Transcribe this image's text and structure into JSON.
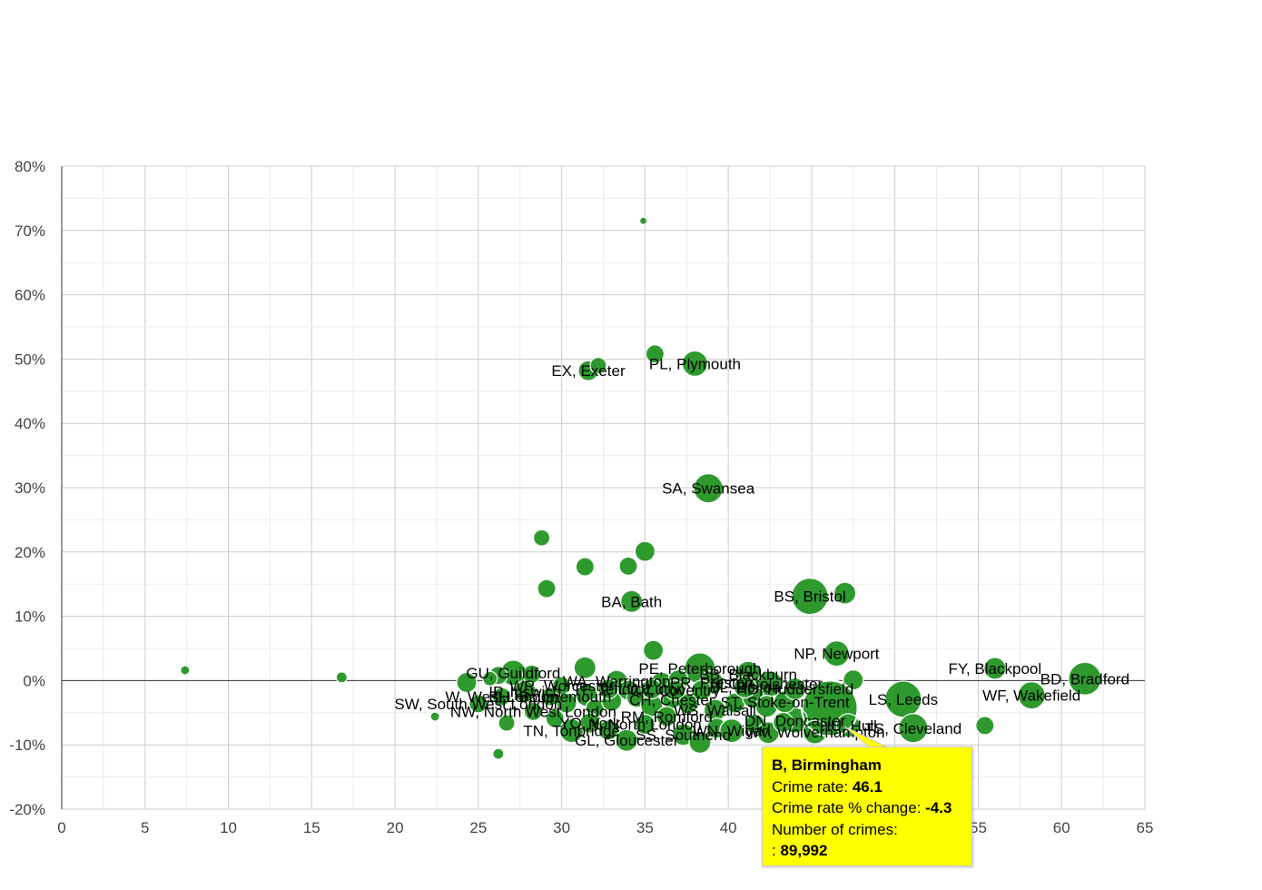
{
  "chart_data": {
    "type": "scatter",
    "title": "",
    "xlabel": "",
    "ylabel": "",
    "xlim": [
      0,
      65
    ],
    "ylim": [
      -20,
      80
    ],
    "x_ticks": [
      "0",
      "5",
      "10",
      "15",
      "20",
      "25",
      "30",
      "35",
      "40",
      "45",
      "50",
      "55",
      "60",
      "65"
    ],
    "y_ticks": [
      "-20%",
      "-10%",
      "0%",
      "10%",
      "20%",
      "30%",
      "40%",
      "50%",
      "60%",
      "70%",
      "80%"
    ],
    "bubble_color": "#2e9a2e",
    "points": [
      {
        "x": 7.4,
        "y": 1.6,
        "r": 5,
        "label": ""
      },
      {
        "x": 16.8,
        "y": 0.5,
        "r": 6,
        "label": ""
      },
      {
        "x": 22.4,
        "y": -5.6,
        "r": 5,
        "label": ""
      },
      {
        "x": 26.2,
        "y": -11.4,
        "r": 6,
        "label": ""
      },
      {
        "x": 34.9,
        "y": 71.5,
        "r": 4,
        "label": ""
      },
      {
        "x": 35.6,
        "y": 50.8,
        "r": 10,
        "label": ""
      },
      {
        "x": 38.0,
        "y": 49.3,
        "r": 14,
        "label": "PL, Plymouth"
      },
      {
        "x": 31.6,
        "y": 48.2,
        "r": 11,
        "label": "EX, Exeter"
      },
      {
        "x": 32.2,
        "y": 49.0,
        "r": 9,
        "label": ""
      },
      {
        "x": 38.8,
        "y": 29.9,
        "r": 16,
        "label": "SA, Swansea"
      },
      {
        "x": 28.8,
        "y": 22.2,
        "r": 9,
        "label": ""
      },
      {
        "x": 35.0,
        "y": 20.1,
        "r": 11,
        "label": ""
      },
      {
        "x": 31.4,
        "y": 17.7,
        "r": 10,
        "label": ""
      },
      {
        "x": 34.0,
        "y": 17.8,
        "r": 10,
        "label": ""
      },
      {
        "x": 29.1,
        "y": 14.3,
        "r": 10,
        "label": ""
      },
      {
        "x": 34.2,
        "y": 12.3,
        "r": 12,
        "label": "BA, Bath"
      },
      {
        "x": 44.9,
        "y": 13.1,
        "r": 20,
        "label": "BS, Bristol"
      },
      {
        "x": 47.0,
        "y": 13.6,
        "r": 12,
        "label": ""
      },
      {
        "x": 35.5,
        "y": 4.7,
        "r": 11,
        "label": ""
      },
      {
        "x": 46.5,
        "y": 4.2,
        "r": 14,
        "label": "NP, Newport"
      },
      {
        "x": 47.5,
        "y": 0.1,
        "r": 11,
        "label": ""
      },
      {
        "x": 56.0,
        "y": 1.9,
        "r": 12,
        "label": "FY, Blackpool"
      },
      {
        "x": 61.4,
        "y": 0.3,
        "r": 18,
        "label": "BD, Bradford"
      },
      {
        "x": 58.2,
        "y": -2.3,
        "r": 15,
        "label": "WF, Wakefield"
      },
      {
        "x": 50.5,
        "y": -2.9,
        "r": 20,
        "label": "LS, Leeds"
      },
      {
        "x": 51.1,
        "y": -7.4,
        "r": 16,
        "label": "TS, Cleveland"
      },
      {
        "x": 55.4,
        "y": -7.0,
        "r": 10,
        "label": ""
      },
      {
        "x": 46.1,
        "y": -4.3,
        "r": 30,
        "label": ""
      },
      {
        "x": 44.0,
        "y": -6.2,
        "r": 14,
        "label": "DN, Doncaster"
      },
      {
        "x": 45.2,
        "y": -8.0,
        "r": 13,
        "label": "WV, Wolverhampton"
      },
      {
        "x": 47.2,
        "y": -7.0,
        "r": 13,
        "label": "HU, Hull"
      },
      {
        "x": 38.3,
        "y": 1.9,
        "r": 17,
        "label": "PE, Peterborough"
      },
      {
        "x": 41.2,
        "y": 1.0,
        "r": 14,
        "label": "BB, Blackburn"
      },
      {
        "x": 42.5,
        "y": -0.5,
        "r": 14,
        "label": "CO, Colchester"
      },
      {
        "x": 39.0,
        "y": -0.3,
        "r": 13,
        "label": "PR, Preston"
      },
      {
        "x": 36.0,
        "y": -0.4,
        "r": 12,
        "label": ""
      },
      {
        "x": 37.0,
        "y": 0.1,
        "r": 11,
        "label": ""
      },
      {
        "x": 33.3,
        "y": -0.1,
        "r": 12,
        "label": "WA, Warrington"
      },
      {
        "x": 34.0,
        "y": -1.5,
        "r": 11,
        "label": ""
      },
      {
        "x": 31.4,
        "y": 2.0,
        "r": 12,
        "label": ""
      },
      {
        "x": 27.1,
        "y": 1.2,
        "r": 14,
        "label": "GU, Guildford"
      },
      {
        "x": 28.2,
        "y": 1.0,
        "r": 10,
        "label": ""
      },
      {
        "x": 26.2,
        "y": 0.8,
        "r": 10,
        "label": ""
      },
      {
        "x": 24.3,
        "y": -0.3,
        "r": 11,
        "label": ""
      },
      {
        "x": 25.7,
        "y": 0.3,
        "r": 8,
        "label": ""
      },
      {
        "x": 27.8,
        "y": -1.7,
        "r": 12,
        "label": "IP, Ipswich"
      },
      {
        "x": 29.3,
        "y": -2.5,
        "r": 10,
        "label": "BH, Bournemouth"
      },
      {
        "x": 30.3,
        "y": -3.5,
        "r": 11,
        "label": ""
      },
      {
        "x": 31.5,
        "y": -2.3,
        "r": 12,
        "label": ""
      },
      {
        "x": 32.0,
        "y": -4.3,
        "r": 10,
        "label": ""
      },
      {
        "x": 33.0,
        "y": -3.2,
        "r": 11,
        "label": ""
      },
      {
        "x": 34.5,
        "y": -2.6,
        "r": 11,
        "label": ""
      },
      {
        "x": 35.4,
        "y": -3.9,
        "r": 12,
        "label": ""
      },
      {
        "x": 36.6,
        "y": -3.0,
        "r": 10,
        "label": "CH, Chester"
      },
      {
        "x": 37.6,
        "y": -3.6,
        "r": 11,
        "label": ""
      },
      {
        "x": 38.4,
        "y": -1.5,
        "r": 11,
        "label": ""
      },
      {
        "x": 39.2,
        "y": -4.6,
        "r": 12,
        "label": "WS, Walsall"
      },
      {
        "x": 40.4,
        "y": -3.5,
        "r": 11,
        "label": ""
      },
      {
        "x": 41.5,
        "y": -2.6,
        "r": 12,
        "label": ""
      },
      {
        "x": 42.3,
        "y": -4.0,
        "r": 12,
        "label": ""
      },
      {
        "x": 43.4,
        "y": -3.3,
        "r": 12,
        "label": "ST, Stoke-on-Trent"
      },
      {
        "x": 26.7,
        "y": -6.6,
        "r": 9,
        "label": ""
      },
      {
        "x": 28.3,
        "y": -4.8,
        "r": 10,
        "label": "NW, North West London"
      },
      {
        "x": 29.6,
        "y": -5.9,
        "r": 10,
        "label": ""
      },
      {
        "x": 30.6,
        "y": -7.8,
        "r": 13,
        "label": "TN, Tonbridge"
      },
      {
        "x": 31.7,
        "y": -6.6,
        "r": 11,
        "label": "YO, York"
      },
      {
        "x": 32.8,
        "y": -7.7,
        "r": 11,
        "label": ""
      },
      {
        "x": 33.9,
        "y": -9.3,
        "r": 12,
        "label": "GL, Gloucester"
      },
      {
        "x": 35.0,
        "y": -6.8,
        "r": 11,
        "label": "N, North London"
      },
      {
        "x": 36.3,
        "y": -5.6,
        "r": 11,
        "label": "RM, Romford"
      },
      {
        "x": 37.3,
        "y": -8.4,
        "r": 12,
        "label": "SS, Southend"
      },
      {
        "x": 38.3,
        "y": -9.6,
        "r": 12,
        "label": ""
      },
      {
        "x": 39.3,
        "y": -7.4,
        "r": 11,
        "label": ""
      },
      {
        "x": 40.2,
        "y": -7.8,
        "r": 13,
        "label": "WN, Wigan"
      },
      {
        "x": 41.6,
        "y": -6.8,
        "r": 11,
        "label": ""
      },
      {
        "x": 42.4,
        "y": -8.1,
        "r": 12,
        "label": ""
      },
      {
        "x": 43.3,
        "y": -6.5,
        "r": 11,
        "label": ""
      },
      {
        "x": 25.0,
        "y": -3.6,
        "r": 10,
        "label": "SW, South West London"
      },
      {
        "x": 26.4,
        "y": -2.5,
        "r": 10,
        "label": "W, West London"
      },
      {
        "x": 30.0,
        "y": -0.8,
        "r": 10,
        "label": "WR, Worcester"
      },
      {
        "x": 32.8,
        "y": -1.3,
        "r": 11,
        "label": "TF, Telford"
      },
      {
        "x": 35.4,
        "y": -1.3,
        "r": 11,
        "label": "LU, Luton"
      },
      {
        "x": 36.8,
        "y": -1.5,
        "r": 11,
        "label": "CV, Coventry"
      },
      {
        "x": 41.0,
        "y": -1.0,
        "r": 12,
        "label": "BL, Bolton"
      },
      {
        "x": 44.0,
        "y": -1.3,
        "r": 12,
        "label": "HD, Huddersfield"
      }
    ],
    "highlight": {
      "x": 46.1,
      "y": -4.3
    }
  },
  "tooltip": {
    "title": "B, Birmingham",
    "crime_rate_label": "Crime rate:",
    "crime_rate_value": "46.1",
    "change_label": "Crime rate % change:",
    "change_value": "-4.3",
    "count_label": "Number of crimes:",
    "count_prefix": ":",
    "count_value": "89,992"
  }
}
